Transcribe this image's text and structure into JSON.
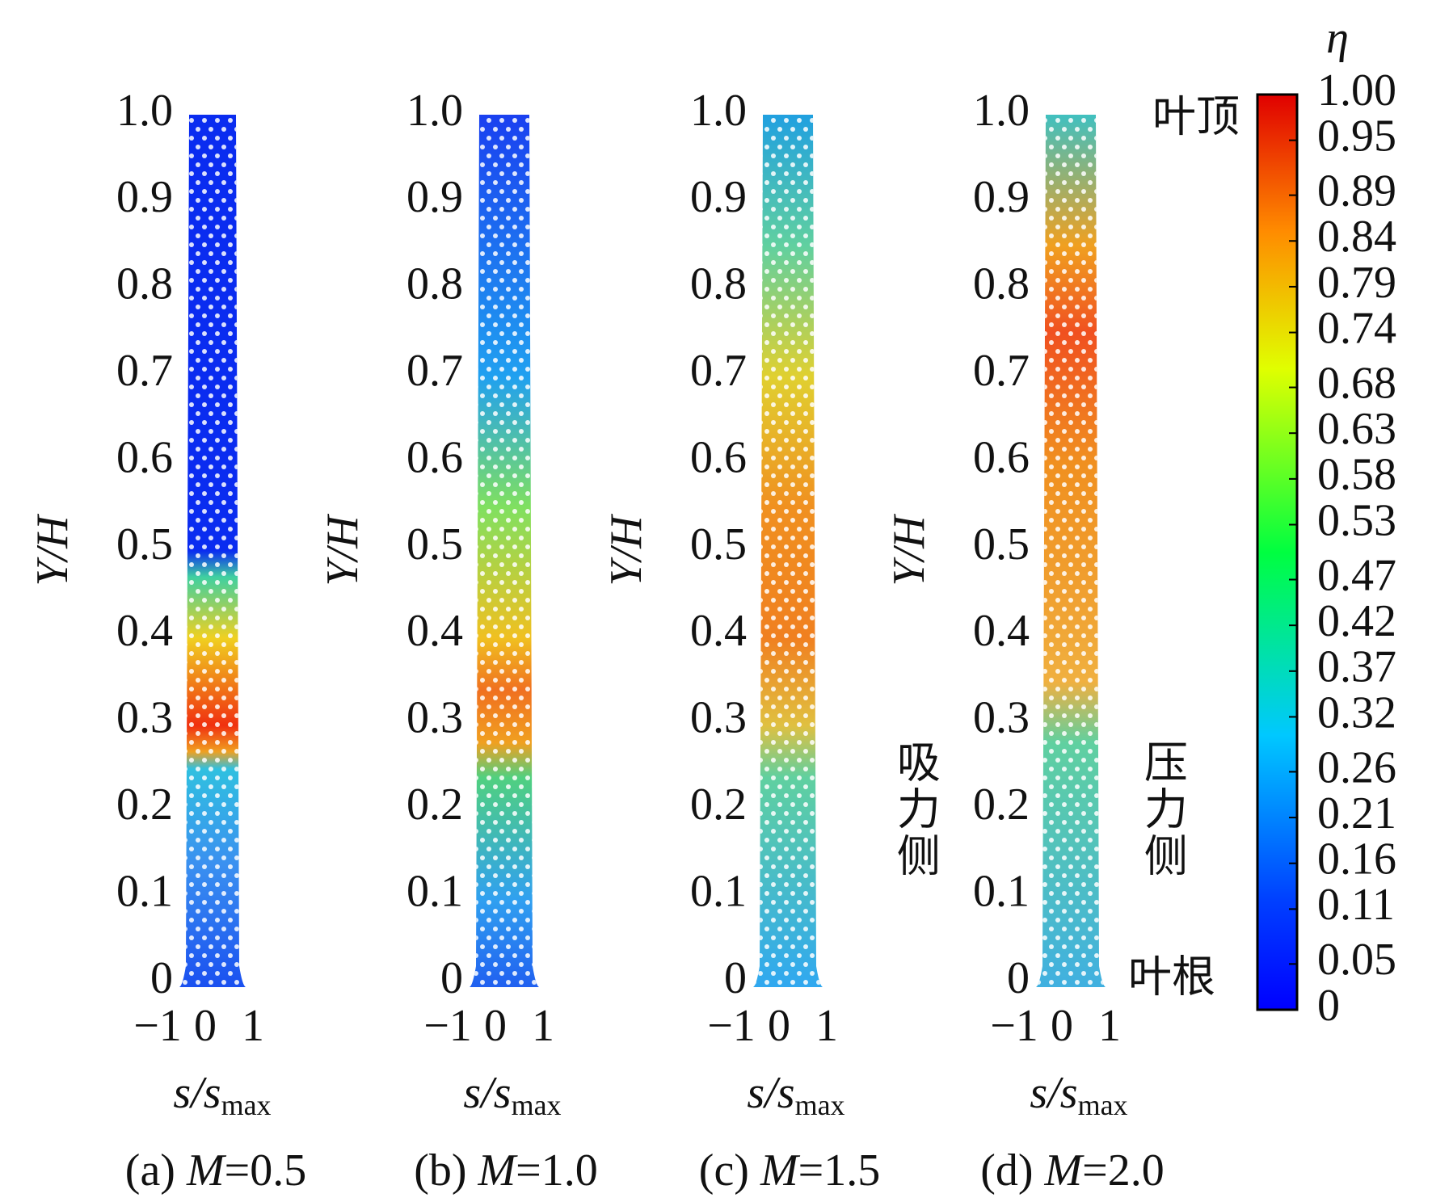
{
  "chart_data": [
    {
      "type": "contour",
      "ylabel": "Y/H",
      "xlabel": "s/s",
      "xlabel_sub": "max",
      "caption_prefix": "(a)",
      "caption_var": "M",
      "caption_value": "=0.5",
      "xlim": [
        -1,
        1
      ],
      "xticks": [
        {
          "value": -1,
          "label": "−1"
        },
        0,
        1
      ],
      "ylim": [
        0,
        1
      ],
      "yticks": [
        0,
        0.1,
        0.2,
        0.3,
        0.4,
        0.5,
        0.6,
        0.7,
        0.8,
        0.9,
        {
          "value": 1,
          "label": "1.0"
        }
      ]
    },
    {
      "type": "contour",
      "ylabel": "Y/H",
      "xlabel": "s/s",
      "xlabel_sub": "max",
      "caption_prefix": "(b)",
      "caption_var": "M",
      "caption_value": "=1.0",
      "xlim": [
        -1,
        1
      ],
      "xticks": [
        {
          "value": -1,
          "label": "−1"
        },
        0,
        1
      ],
      "ylim": [
        0,
        1
      ],
      "yticks": [
        0,
        0.1,
        0.2,
        0.3,
        0.4,
        0.5,
        0.6,
        0.7,
        0.8,
        0.9,
        {
          "value": 1,
          "label": "1.0"
        }
      ]
    },
    {
      "type": "contour",
      "ylabel": "Y/H",
      "xlabel": "s/s",
      "xlabel_sub": "max",
      "caption_prefix": "(c)",
      "caption_var": "M",
      "caption_value": "=1.5",
      "xlim": [
        -1,
        1
      ],
      "xticks": [
        {
          "value": -1,
          "label": "−1"
        },
        0,
        1
      ],
      "ylim": [
        0,
        1
      ],
      "yticks": [
        0,
        0.1,
        0.2,
        0.3,
        0.4,
        0.5,
        0.6,
        0.7,
        0.8,
        0.9,
        {
          "value": 1,
          "label": "1.0"
        }
      ]
    },
    {
      "type": "contour",
      "ylabel": "Y/H",
      "xlabel": "s/s",
      "xlabel_sub": "max",
      "caption_prefix": "(d)",
      "caption_var": "M",
      "caption_value": "=2.0",
      "xlim": [
        -1,
        1
      ],
      "xticks": [
        {
          "value": -1,
          "label": "−1"
        },
        0,
        1
      ],
      "ylim": [
        0,
        1
      ],
      "yticks": [
        0,
        0.1,
        0.2,
        0.3,
        0.4,
        0.5,
        0.6,
        0.7,
        0.8,
        0.9,
        {
          "value": 1,
          "label": "1.0"
        }
      ]
    }
  ],
  "colorbar": {
    "label": "η",
    "lim": [
      0,
      1
    ],
    "ticks": [
      0,
      0.05,
      0.11,
      0.16,
      0.21,
      0.26,
      0.32,
      0.37,
      0.42,
      0.47,
      0.53,
      0.58,
      0.63,
      0.68,
      0.74,
      0.79,
      0.84,
      0.89,
      0.95,
      {
        "value": 1,
        "label": "1.00"
      }
    ]
  },
  "annotations": {
    "tip": "叶顶",
    "root": "叶根",
    "suction_side": "吸力侧",
    "pressure_side": "压力侧"
  }
}
